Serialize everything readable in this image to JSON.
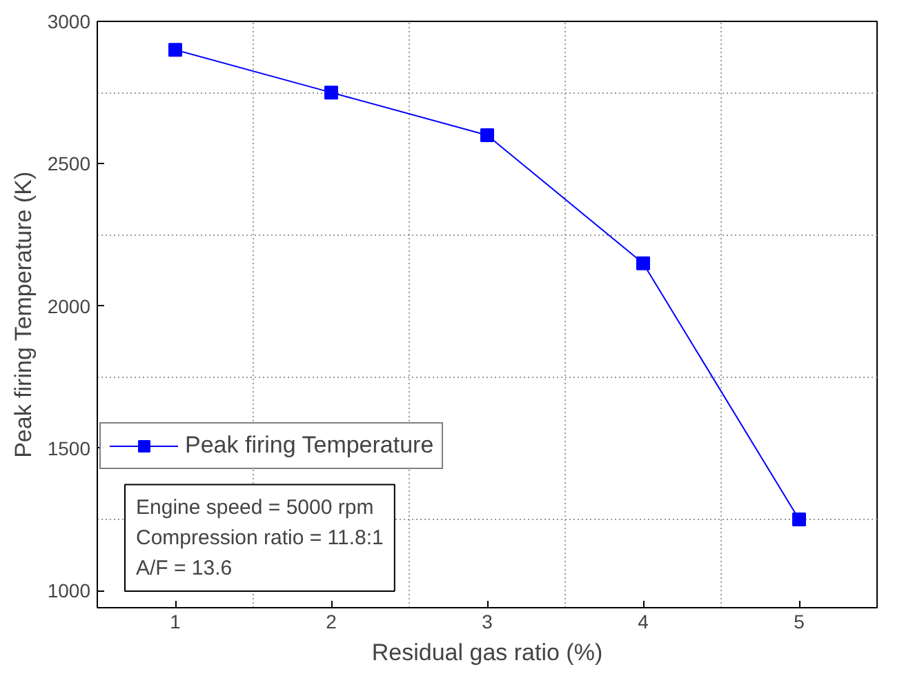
{
  "chart_data": {
    "type": "line",
    "xlabel": "Residual gas ratio (%)",
    "ylabel": "Peak firing Temperature (K)",
    "x": [
      1,
      2,
      3,
      4,
      5
    ],
    "series": [
      {
        "name": "Peak firing Temperature",
        "color": "#0000ff",
        "values": [
          2900,
          2750,
          2600,
          2150,
          1250
        ]
      }
    ],
    "xlim": [
      0.5,
      5.5
    ],
    "ylim": [
      940,
      3000
    ],
    "xticks": [
      1,
      2,
      3,
      4,
      5
    ],
    "yticks": [
      1000,
      1500,
      2000,
      2500,
      3000
    ],
    "grid": true,
    "legend": "bottom left",
    "marker": "square",
    "line_style": "solid",
    "annotations": [
      "Engine speed = 5000 rpm\nCompression ratio = 11.8:1\nA/F = 13.6"
    ]
  }
}
